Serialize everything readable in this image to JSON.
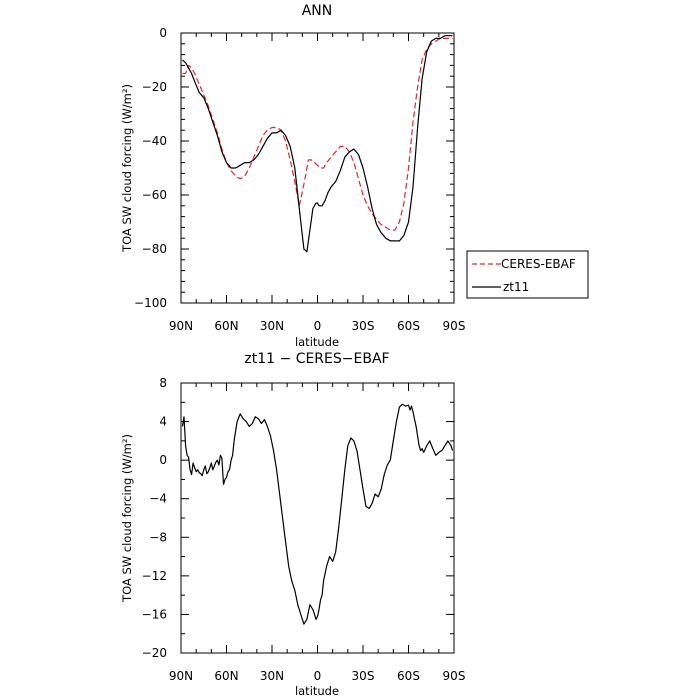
{
  "chart_data": [
    {
      "type": "line",
      "title": "ANN",
      "xlabel": "latitude",
      "ylabel": "TOA SW cloud forcing (W/m²)",
      "xticks": [
        90,
        60,
        30,
        0,
        -30,
        -60,
        -90
      ],
      "xtick_labels": [
        "90N",
        "60N",
        "30N",
        "0",
        "30S",
        "60S",
        "90S"
      ],
      "xlim": [
        90,
        -90
      ],
      "ylim": [
        -100,
        0
      ],
      "yticks": [
        0,
        -20,
        -40,
        -60,
        -80,
        -100
      ],
      "ytick_labels": [
        "0",
        "−20",
        "−40",
        "−60",
        "−80",
        "−100"
      ],
      "legend_position": "right",
      "series": [
        {
          "name": "CERES-EBAF",
          "color": "#e8262e",
          "dash": "dashed",
          "x": [
            89,
            87,
            85,
            83,
            81,
            78,
            75,
            72,
            69,
            66,
            63,
            60,
            57,
            54,
            51,
            48,
            45,
            42,
            39,
            36,
            33,
            30,
            27,
            24,
            21,
            18,
            15,
            12,
            9,
            6,
            4,
            2,
            0,
            -2,
            -4,
            -6,
            -9,
            -12,
            -15,
            -18,
            -21,
            -24,
            -27,
            -30,
            -33,
            -36,
            -39,
            -42,
            -45,
            -48,
            -51,
            -54,
            -57,
            -60,
            -63,
            -66,
            -69,
            -72,
            -75,
            -78,
            -81,
            -84,
            -87,
            -89
          ],
          "y": [
            -15,
            -15,
            -12,
            -13,
            -15,
            -19,
            -23,
            -27,
            -32,
            -37,
            -43,
            -48,
            -51,
            -53,
            -54,
            -53,
            -50,
            -46,
            -42,
            -38,
            -36,
            -35,
            -35,
            -36,
            -40,
            -47,
            -55,
            -64,
            -56,
            -47,
            -47,
            -48,
            -49,
            -50,
            -50,
            -48,
            -46,
            -44,
            -42,
            -42,
            -44,
            -48,
            -54,
            -60,
            -64,
            -67,
            -69,
            -71,
            -72,
            -73,
            -73,
            -70,
            -63,
            -50,
            -33,
            -20,
            -10,
            -6,
            -4,
            -3,
            -2,
            -2,
            -2,
            -2
          ]
        },
        {
          "name": "zt11",
          "color": "#000000",
          "dash": "solid",
          "x": [
            89,
            87,
            85,
            83,
            81,
            78,
            75,
            72,
            69,
            66,
            63,
            60,
            57,
            54,
            51,
            48,
            45,
            42,
            39,
            36,
            33,
            30,
            27,
            24,
            21,
            18,
            15,
            13,
            11,
            9,
            7,
            5,
            3,
            1,
            0,
            -1,
            -3,
            -5,
            -7,
            -9,
            -12,
            -15,
            -18,
            -21,
            -24,
            -27,
            -30,
            -33,
            -36,
            -39,
            -42,
            -45,
            -48,
            -51,
            -54,
            -57,
            -60,
            -63,
            -66,
            -69,
            -72,
            -75,
            -78,
            -81,
            -84,
            -87,
            -89
          ],
          "y": [
            -10,
            -11,
            -13,
            -15,
            -18,
            -22,
            -24,
            -28,
            -33,
            -38,
            -44,
            -48,
            -50,
            -50,
            -49,
            -48,
            -48,
            -47,
            -45,
            -42,
            -39,
            -37,
            -37,
            -36,
            -38,
            -42,
            -50,
            -60,
            -70,
            -80,
            -81,
            -73,
            -65,
            -63,
            -63,
            -64,
            -64,
            -62,
            -59,
            -57,
            -55,
            -51,
            -46,
            -44,
            -43,
            -45,
            -50,
            -57,
            -65,
            -71,
            -74,
            -76,
            -77,
            -77,
            -77,
            -75,
            -70,
            -57,
            -35,
            -17,
            -7,
            -3,
            -2,
            -2,
            -1,
            -1,
            -1
          ]
        }
      ]
    },
    {
      "type": "line",
      "title": "zt11 − CERES−EBAF",
      "xlabel": "latitude",
      "ylabel": "TOA SW cloud forcing (W/m²)",
      "xticks": [
        90,
        60,
        30,
        0,
        -30,
        -60,
        -90
      ],
      "xtick_labels": [
        "90N",
        "60N",
        "30N",
        "0",
        "30S",
        "60S",
        "90S"
      ],
      "xlim": [
        90,
        -90
      ],
      "ylim": [
        -20,
        8
      ],
      "yticks": [
        8,
        4,
        0,
        -4,
        -8,
        -12,
        -16,
        -20
      ],
      "ytick_labels": [
        "8",
        "4",
        "0",
        "−4",
        "−8",
        "−12",
        "−16",
        "−20"
      ],
      "series": [
        {
          "color": "#000000",
          "dash": "solid",
          "x": [
            89,
            88,
            87,
            86,
            85,
            84,
            83,
            82,
            81,
            80,
            79,
            78,
            77,
            76,
            75,
            74,
            73,
            72,
            71,
            70,
            69,
            68,
            67,
            66,
            65,
            64,
            63,
            62,
            61,
            60,
            59,
            58,
            57,
            56,
            55,
            53,
            51,
            49,
            47,
            45,
            43,
            41,
            39,
            37,
            35,
            33,
            31,
            29,
            27,
            25,
            23,
            21,
            19,
            17,
            15,
            13,
            11,
            9,
            7,
            5,
            3,
            2,
            1,
            0,
            -1,
            -2,
            -3,
            -4,
            -6,
            -8,
            -10,
            -12,
            -14,
            -16,
            -18,
            -20,
            -22,
            -24,
            -26,
            -28,
            -30,
            -32,
            -34,
            -36,
            -38,
            -40,
            -42,
            -44,
            -46,
            -48,
            -50,
            -52,
            -54,
            -56,
            -58,
            -60,
            -61,
            -62,
            -63,
            -64,
            -65,
            -66,
            -67,
            -68,
            -69,
            -70,
            -72,
            -74,
            -76,
            -78,
            -80,
            -82,
            -84,
            -86,
            -88,
            -89
          ],
          "y": [
            3.5,
            4.5,
            1.5,
            0.5,
            0.3,
            -1.0,
            -1.5,
            -0.3,
            -0.8,
            -1.2,
            -1.0,
            -1.3,
            -1.4,
            -1.6,
            -1.0,
            -0.6,
            -1.4,
            -1.2,
            -0.8,
            -0.3,
            -1.0,
            -0.6,
            -0.2,
            0,
            -0.5,
            0.5,
            0.2,
            -2.5,
            -2.0,
            -1.8,
            -1.2,
            -1.0,
            0.0,
            0.5,
            2.0,
            4.0,
            4.8,
            4.3,
            4.0,
            3.5,
            3.8,
            4.5,
            4.3,
            3.8,
            4.2,
            3.5,
            2.5,
            1.0,
            -1.0,
            -3.5,
            -6.0,
            -8.5,
            -11.0,
            -12.5,
            -13.5,
            -15.0,
            -16.0,
            -17.0,
            -16.5,
            -15.0,
            -15.5,
            -16.0,
            -16.5,
            -16.2,
            -15.5,
            -14.5,
            -14.0,
            -12.5,
            -11.0,
            -10.0,
            -10.5,
            -9.5,
            -7.0,
            -4.0,
            -1.0,
            1.5,
            2.3,
            2.0,
            1.0,
            -1.0,
            -3.0,
            -4.8,
            -5.0,
            -4.5,
            -3.5,
            -3.8,
            -3.0,
            -1.5,
            -0.5,
            0.0,
            2.0,
            4.0,
            5.5,
            5.8,
            5.6,
            5.7,
            5.2,
            5.6,
            5.0,
            4.2,
            3.5,
            2.5,
            1.5,
            1.0,
            1.2,
            0.8,
            1.5,
            2.0,
            1.2,
            0.5,
            0.8,
            1.0,
            1.5,
            2.0,
            1.5,
            1.0
          ]
        }
      ]
    }
  ]
}
